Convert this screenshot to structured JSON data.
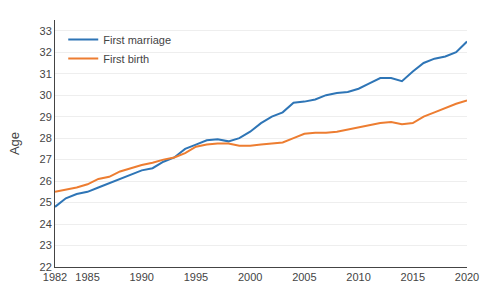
{
  "chart_data": {
    "type": "line",
    "ylabel": "Age",
    "x": [
      1982,
      1983,
      1984,
      1985,
      1986,
      1987,
      1988,
      1989,
      1990,
      1991,
      1992,
      1993,
      1994,
      1995,
      1996,
      1997,
      1998,
      1999,
      2000,
      2001,
      2002,
      2003,
      2004,
      2005,
      2006,
      2007,
      2008,
      2009,
      2010,
      2011,
      2012,
      2013,
      2014,
      2015,
      2016,
      2017,
      2018,
      2019,
      2020
    ],
    "series": [
      {
        "name": "First marriage",
        "color": "#2e75b6",
        "values": [
          24.8,
          25.2,
          25.4,
          25.5,
          25.7,
          25.9,
          26.1,
          26.3,
          26.5,
          26.6,
          26.9,
          27.1,
          27.5,
          27.7,
          27.9,
          27.95,
          27.85,
          28.0,
          28.3,
          28.7,
          29.0,
          29.2,
          29.65,
          29.7,
          29.8,
          30.0,
          30.1,
          30.15,
          30.3,
          30.55,
          30.8,
          30.8,
          30.65,
          31.1,
          31.5,
          31.7,
          31.8,
          32.0,
          32.5
        ]
      },
      {
        "name": "First birth",
        "color": "#ed7d31",
        "values": [
          25.5,
          25.6,
          25.7,
          25.85,
          26.1,
          26.2,
          26.45,
          26.6,
          26.75,
          26.85,
          27.0,
          27.1,
          27.3,
          27.6,
          27.7,
          27.75,
          27.75,
          27.65,
          27.65,
          27.7,
          27.75,
          27.8,
          28.0,
          28.2,
          28.25,
          28.25,
          28.3,
          28.4,
          28.5,
          28.6,
          28.7,
          28.75,
          28.65,
          28.7,
          29.0,
          29.2,
          29.4,
          29.6,
          29.75
        ]
      }
    ],
    "xlim": [
      1982,
      2020
    ],
    "xticks": [
      1982,
      1985,
      1990,
      1995,
      2000,
      2005,
      2010,
      2015,
      2020
    ],
    "ylim": [
      22,
      33.5
    ],
    "yticks": [
      22,
      23,
      24,
      25,
      26,
      27,
      28,
      29,
      30,
      31,
      32,
      33
    ],
    "grid": "y",
    "legend": "upper left"
  }
}
